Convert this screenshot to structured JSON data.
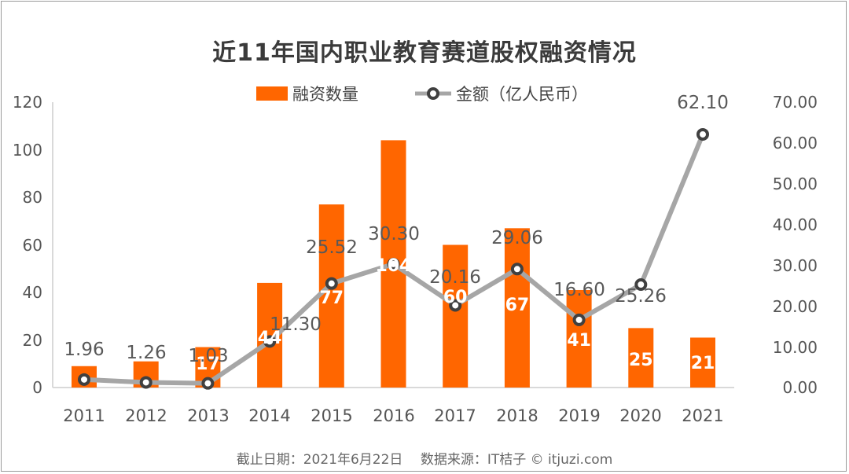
{
  "chart_data": {
    "type": "bar+line",
    "title": "近11年国内职业教育赛道股权融资情况",
    "categories": [
      "2011",
      "2012",
      "2013",
      "2014",
      "2015",
      "2016",
      "2017",
      "2018",
      "2019",
      "2020",
      "2021"
    ],
    "series": [
      {
        "name": "融资数量",
        "type": "bar",
        "axis": "left",
        "color": "#ff6600",
        "values": [
          9,
          11,
          17,
          44,
          77,
          104,
          60,
          67,
          41,
          25,
          21
        ],
        "labels_shown": [
          "",
          "",
          "17",
          "44",
          "77",
          "104",
          "60",
          "67",
          "41",
          "25",
          "21"
        ]
      },
      {
        "name": "金额（亿人民币）",
        "type": "line",
        "axis": "right",
        "color": "#a6a6a6",
        "marker_color": "#404040",
        "values": [
          1.96,
          1.26,
          1.03,
          11.3,
          25.52,
          30.3,
          20.16,
          29.06,
          16.6,
          25.26,
          62.1
        ]
      }
    ],
    "left_axis": {
      "ylim": [
        0,
        120
      ],
      "ticks": [
        "0",
        "20",
        "40",
        "60",
        "80",
        "100",
        "120"
      ]
    },
    "right_axis": {
      "ylim": [
        0,
        70
      ],
      "ticks": [
        "0.00",
        "10.00",
        "20.00",
        "30.00",
        "40.00",
        "50.00",
        "60.00",
        "70.00"
      ]
    },
    "xlabel": "",
    "ylabel": "",
    "legend_position": "top",
    "grid": false
  },
  "title": "近11年国内职业教育赛道股权融资情况",
  "legend": {
    "bar_label": "融资数量",
    "line_label": "金额（亿人民币）"
  },
  "axes": {
    "left_ticks": [
      "120",
      "100",
      "80",
      "60",
      "40",
      "20",
      "0"
    ],
    "right_ticks": [
      "70.00",
      "60.00",
      "50.00",
      "40.00",
      "30.00",
      "20.00",
      "10.00",
      "0.00"
    ],
    "x_ticks": [
      "2011",
      "2012",
      "2013",
      "2014",
      "2015",
      "2016",
      "2017",
      "2018",
      "2019",
      "2020",
      "2021"
    ]
  },
  "footer": "截止日期：2021年6月22日　 数据来源：IT桔子 © itjuzi.com",
  "colors": {
    "bar": "#ff6600",
    "line": "#a6a6a6",
    "marker": "#404040",
    "text": "#555555"
  }
}
